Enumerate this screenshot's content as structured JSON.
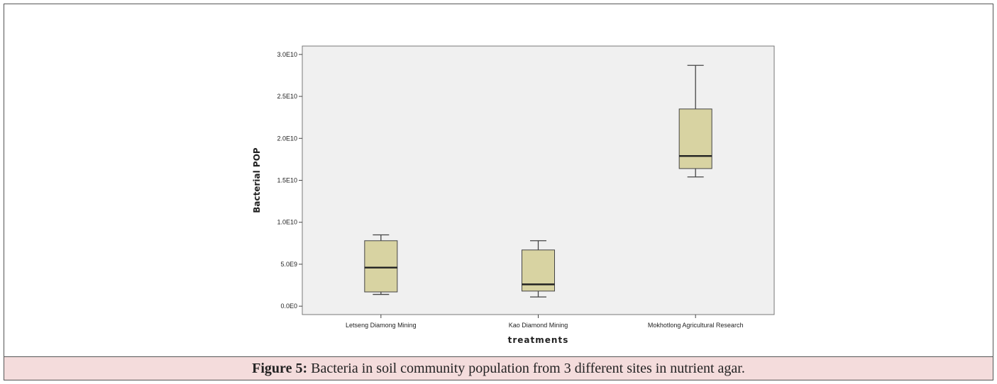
{
  "figure": {
    "caption_label": "Figure 5:",
    "caption_text": "Bacteria in soil community population from 3 different sites in nutrient agar."
  },
  "colors": {
    "plot_background": "#f0f0f0",
    "box_fill": "#d8d3a2",
    "box_stroke": "#444444",
    "median": "#222222",
    "caption_background": "#f4dcdc"
  },
  "chart_data": {
    "type": "box",
    "xlabel": "treatments",
    "ylabel": "Bacterial POP",
    "ylim": [
      -1000000000.0,
      31000000000.0
    ],
    "yticks": [
      {
        "value": 0,
        "label": "0.0E0"
      },
      {
        "value": 5000000000.0,
        "label": "5.0E9"
      },
      {
        "value": 10000000000.0,
        "label": "1.0E10"
      },
      {
        "value": 15000000000.0,
        "label": "1.5E10"
      },
      {
        "value": 20000000000.0,
        "label": "2.0E10"
      },
      {
        "value": 25000000000.0,
        "label": "2.5E10"
      },
      {
        "value": 30000000000.0,
        "label": "3.0E10"
      }
    ],
    "grid": false,
    "categories": [
      "Letseng Diamong Mining",
      "Kao Diamond Mining",
      "Mokhotlong Agricultural Research"
    ],
    "boxes": [
      {
        "min": 1400000000.0,
        "q1": 1700000000.0,
        "median": 4600000000.0,
        "q3": 7800000000.0,
        "max": 8500000000.0
      },
      {
        "min": 1100000000.0,
        "q1": 1800000000.0,
        "median": 2600000000.0,
        "q3": 6700000000.0,
        "max": 7800000000.0
      },
      {
        "min": 15400000000.0,
        "q1": 16400000000.0,
        "median": 17900000000.0,
        "q3": 23500000000.0,
        "max": 28700000000.0
      }
    ]
  }
}
